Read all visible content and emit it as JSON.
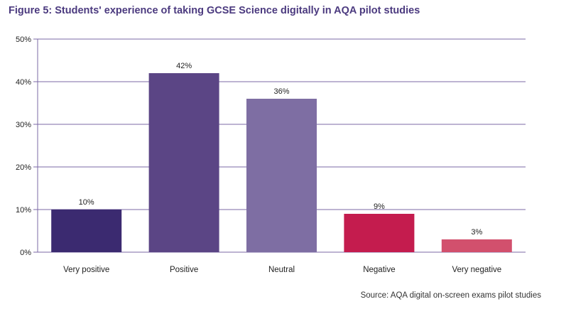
{
  "title": "Figure 5: Students' experience of taking GCSE Science digitally in AQA pilot studies",
  "source": "Source: AQA digital on-screen exams pilot studies",
  "chart_data": {
    "type": "bar",
    "title": "Figure 5: Students' experience of taking GCSE Science digitally in AQA pilot studies",
    "categories": [
      "Very positive",
      "Positive",
      "Neutral",
      "Negative",
      "Very negative"
    ],
    "values": [
      10,
      42,
      36,
      9,
      3
    ],
    "value_labels": [
      "10%",
      "42%",
      "36%",
      "9%",
      "3%"
    ],
    "colors": [
      "#3b2a70",
      "#5b4585",
      "#7e6ea3",
      "#c41c4e",
      "#d2506d"
    ],
    "ylim": [
      0,
      50
    ],
    "yticks": [
      0,
      10,
      20,
      30,
      40,
      50
    ],
    "ytick_labels": [
      "0%",
      "10%",
      "20%",
      "30%",
      "40%",
      "50%"
    ],
    "grid": true,
    "gridline_color": "#7b68a6"
  }
}
